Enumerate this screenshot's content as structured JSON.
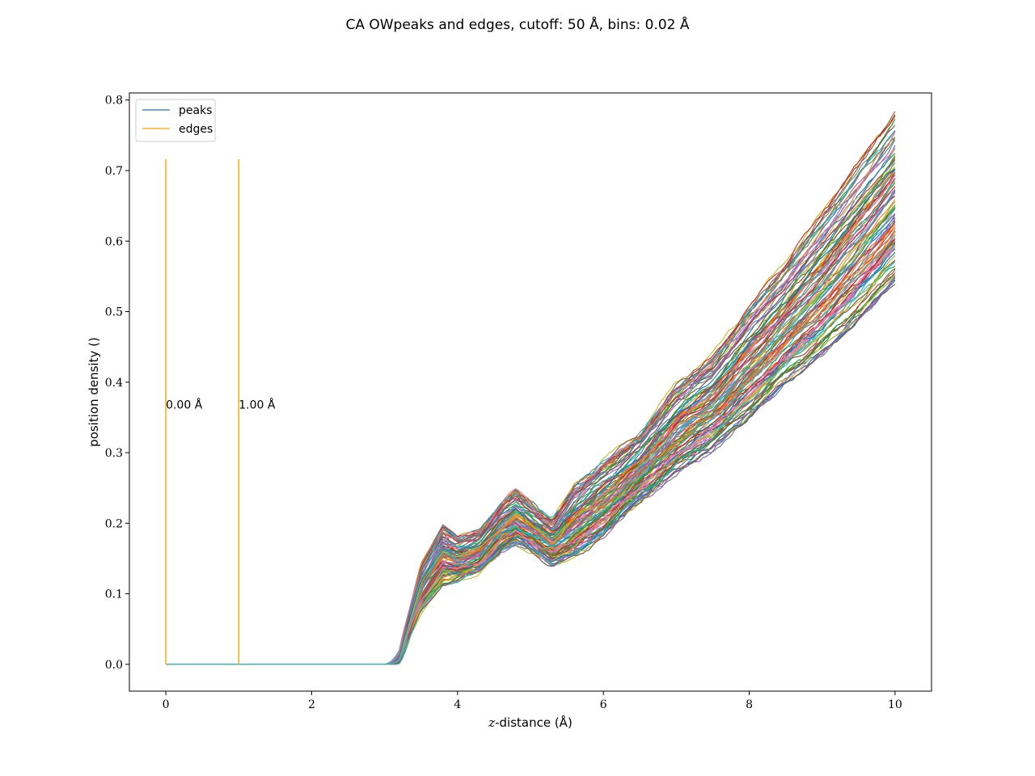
{
  "chart_data": {
    "type": "line",
    "title": "CA OWpeaks and edges, cutoff: 50 Å, bins: 0.02 Å",
    "xlabel_var": "z",
    "xlabel_rest": "-distance (Å)",
    "ylabel": "position density ()",
    "xlim": [
      -0.5,
      10.5
    ],
    "ylim": [
      -0.038,
      0.81
    ],
    "xticks": [
      0,
      2,
      4,
      6,
      8,
      10
    ],
    "yticks": [
      0.0,
      0.1,
      0.2,
      0.3,
      0.4,
      0.5,
      0.6,
      0.7,
      0.8
    ],
    "xtick_labels": [
      "0",
      "2",
      "4",
      "6",
      "8",
      "10"
    ],
    "ytick_labels": [
      "0.0",
      "0.1",
      "0.2",
      "0.3",
      "0.4",
      "0.5",
      "0.6",
      "0.7",
      "0.8"
    ],
    "grid": false,
    "legend": {
      "placement": "upper-left",
      "entries": [
        {
          "name": "peaks",
          "color": "#1f77b4"
        },
        {
          "name": "edges",
          "color": "#ffa500"
        }
      ]
    },
    "edges": [
      {
        "x": 0.0,
        "y_top": 0.716,
        "label": "0.00 Å",
        "label_y": 0.368
      },
      {
        "x": 1.0,
        "y_top": 0.716,
        "label": "1.00 Å",
        "label_y": 0.368
      }
    ],
    "series_count": 150,
    "palette": [
      "#1f77b4",
      "#ff7f0e",
      "#2ca02c",
      "#d62728",
      "#9467bd",
      "#8c564b",
      "#e377c2",
      "#7f7f7f",
      "#bcbd22",
      "#17becf"
    ],
    "density_envelope": {
      "x": [
        0.0,
        3.0,
        3.2,
        3.5,
        3.8,
        4.0,
        4.3,
        4.6,
        4.8,
        5.0,
        5.3,
        5.6,
        6.0,
        6.5,
        7.0,
        7.5,
        8.0,
        8.5,
        9.0,
        9.5,
        10.0
      ],
      "low": [
        0.0,
        0.0,
        0.004,
        0.075,
        0.115,
        0.118,
        0.13,
        0.16,
        0.17,
        0.16,
        0.14,
        0.15,
        0.18,
        0.23,
        0.27,
        0.305,
        0.35,
        0.4,
        0.44,
        0.49,
        0.545
      ],
      "high": [
        0.0,
        0.0,
        0.02,
        0.14,
        0.195,
        0.18,
        0.19,
        0.23,
        0.248,
        0.23,
        0.205,
        0.255,
        0.29,
        0.33,
        0.4,
        0.44,
        0.51,
        0.57,
        0.64,
        0.71,
        0.78
      ]
    }
  }
}
